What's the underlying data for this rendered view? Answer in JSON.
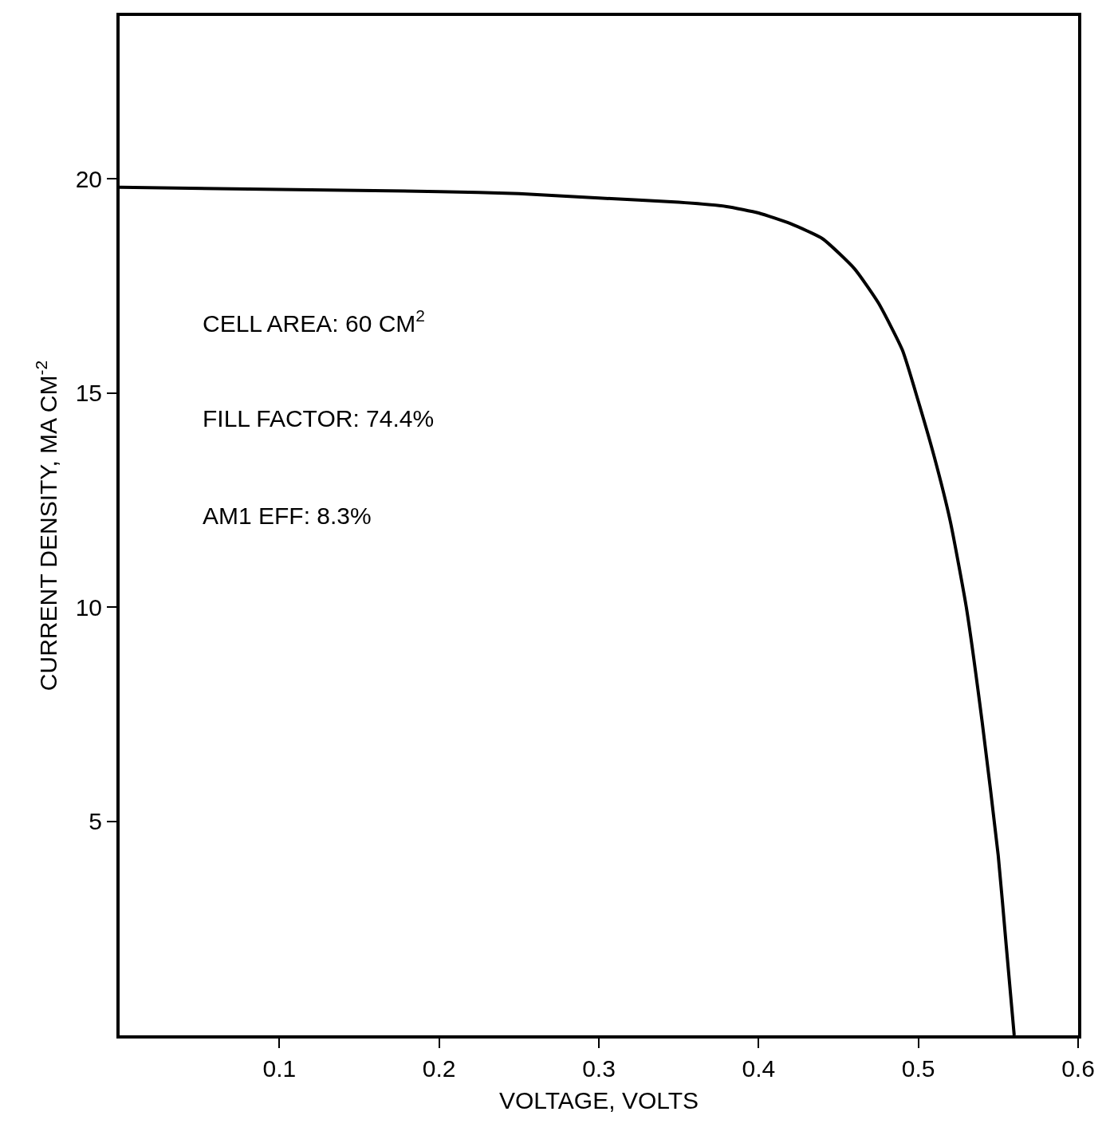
{
  "chart_data": {
    "type": "line",
    "xlabel": "VOLTAGE, VOLTS",
    "ylabel": "CURRENT DENSITY, MA CM$^{-2}$",
    "x": [
      0,
      0.1,
      0.2,
      0.25,
      0.3,
      0.35,
      0.38,
      0.4,
      0.42,
      0.44,
      0.46,
      0.475,
      0.49,
      0.5,
      0.51,
      0.52,
      0.53,
      0.54,
      0.55,
      0.555,
      0.56
    ],
    "series": [
      {
        "color": "#000000",
        "values": [
          19.8,
          19.75,
          19.7,
          19.65,
          19.55,
          19.45,
          19.35,
          19.2,
          18.95,
          18.6,
          17.9,
          17.1,
          16.0,
          14.8,
          13.5,
          12.0,
          10.0,
          7.3,
          4.2,
          2.1,
          0
        ]
      }
    ],
    "xlim": [
      0,
      0.6
    ],
    "ylim": [
      0,
      23.8
    ],
    "xticks": [
      0.1,
      0.2,
      0.3,
      0.4,
      0.5,
      0.6
    ],
    "yticks": [
      5,
      10,
      15,
      20
    ],
    "annotations": [
      "CELL AREA: 60 CM$^{2}$",
      "FILL FACTOR: 74.4%",
      "AM1 EFF: 8.3%"
    ],
    "marker": "none",
    "line_style": "solid"
  }
}
